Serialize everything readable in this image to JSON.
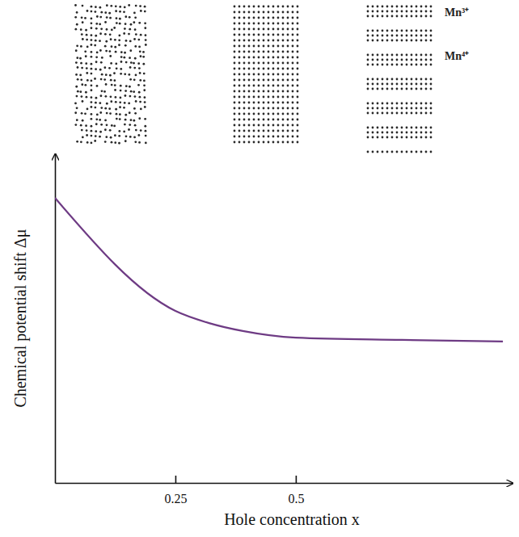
{
  "chart_data": {
    "type": "line",
    "xlabel": "Hole concentration x",
    "ylabel": "Chemical potential shift Δμ",
    "annotations": [
      "Mn³⁺",
      "Mn⁴⁺"
    ],
    "x": [
      0,
      0.25,
      0.32,
      0.39,
      0.5,
      0.72,
      0.93
    ],
    "values": [
      0.865,
      0.522,
      0.485,
      0.461,
      0.441,
      0.434,
      0.429
    ],
    "color": "#6e3b84",
    "xlim": [
      0,
      0.95
    ],
    "ylim": [
      0,
      1
    ],
    "xticks": [
      0.25,
      0.5
    ],
    "yticks": [],
    "grid": false,
    "tick_labels": "x"
  }
}
